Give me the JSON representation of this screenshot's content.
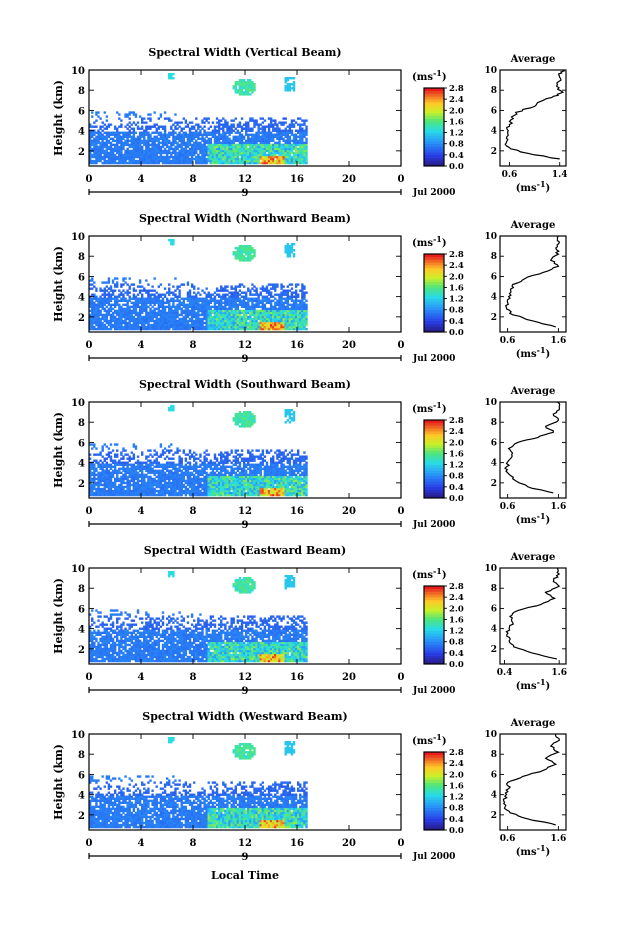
{
  "figure": {
    "shared_xlabel": "Local Time",
    "date_label": "Jul 2000",
    "unit_label": "(ms",
    "unit_exp": "-1",
    "avg_title": "Average"
  },
  "chart_data": [
    {
      "type": "heatmap",
      "title": "Spectral Width (Vertical Beam)",
      "ylabel": "Height (km)",
      "xticks": [
        "0",
        "4",
        "8",
        "12",
        "16",
        "20",
        "0"
      ],
      "xlim": [
        0,
        24
      ],
      "yticks": [
        "2",
        "4",
        "6",
        "8",
        "10"
      ],
      "ylim": [
        0.5,
        10
      ],
      "day_marker": "9",
      "colorbar": {
        "ticks": [
          "0.0",
          "0.4",
          "0.8",
          "1.2",
          "1.6",
          "2.0",
          "2.4",
          "2.8"
        ],
        "range": [
          0.0,
          2.8
        ]
      },
      "profile": {
        "title": "Average",
        "xticks": [
          "0.6",
          "1.4"
        ],
        "xlim": [
          0.45,
          1.5
        ],
        "xlabel": "(ms",
        "yticks": [
          "2",
          "4",
          "6",
          "8",
          "10"
        ],
        "points": [
          [
            1.4,
            1.2
          ],
          [
            1.0,
            1.6
          ],
          [
            0.62,
            2.2
          ],
          [
            0.55,
            2.8
          ],
          [
            0.56,
            3.4
          ],
          [
            0.58,
            4.0
          ],
          [
            0.6,
            4.6
          ],
          [
            0.66,
            5.2
          ],
          [
            0.7,
            5.8
          ],
          [
            1.0,
            6.4
          ],
          [
            1.1,
            6.9
          ],
          [
            1.3,
            7.4
          ],
          [
            1.45,
            7.8
          ],
          [
            1.35,
            8.4
          ],
          [
            1.42,
            9.0
          ],
          [
            1.38,
            9.6
          ],
          [
            1.44,
            10.0
          ]
        ]
      }
    },
    {
      "type": "heatmap",
      "title": "Spectral Width (Northward Beam)",
      "ylabel": "Height (km)",
      "xticks": [
        "0",
        "4",
        "8",
        "12",
        "16",
        "20",
        "0"
      ],
      "xlim": [
        0,
        24
      ],
      "yticks": [
        "2",
        "4",
        "6",
        "8",
        "10"
      ],
      "ylim": [
        0.5,
        10
      ],
      "day_marker": "9",
      "colorbar": {
        "ticks": [
          "0.0",
          "0.4",
          "0.8",
          "1.2",
          "1.6",
          "2.0",
          "2.4",
          "2.8"
        ],
        "range": [
          0.0,
          2.8
        ]
      },
      "profile": {
        "title": "Average",
        "xticks": [
          "0.6",
          "1.6"
        ],
        "xlim": [
          0.45,
          1.75
        ],
        "xlabel": "(ms",
        "yticks": [
          "2",
          "4",
          "6",
          "8",
          "10"
        ],
        "points": [
          [
            1.55,
            1.0
          ],
          [
            1.1,
            1.6
          ],
          [
            0.7,
            2.2
          ],
          [
            0.58,
            2.8
          ],
          [
            0.6,
            3.4
          ],
          [
            0.62,
            4.0
          ],
          [
            0.66,
            4.6
          ],
          [
            0.7,
            5.2
          ],
          [
            0.95,
            5.8
          ],
          [
            1.3,
            6.4
          ],
          [
            1.6,
            7.0
          ],
          [
            1.45,
            7.6
          ],
          [
            1.6,
            8.2
          ],
          [
            1.55,
            8.8
          ],
          [
            1.62,
            9.4
          ],
          [
            1.6,
            10.0
          ]
        ]
      }
    },
    {
      "type": "heatmap",
      "title": "Spectral Width (Southward Beam)",
      "ylabel": "Height (km)",
      "xticks": [
        "0",
        "4",
        "8",
        "12",
        "16",
        "20",
        "0"
      ],
      "xlim": [
        0,
        24
      ],
      "yticks": [
        "2",
        "4",
        "6",
        "8",
        "10"
      ],
      "ylim": [
        0.5,
        10
      ],
      "day_marker": "9",
      "colorbar": {
        "ticks": [
          "0.0",
          "0.4",
          "0.8",
          "1.2",
          "1.6",
          "2.0",
          "2.4",
          "2.8"
        ],
        "range": [
          0.0,
          2.8
        ]
      },
      "profile": {
        "title": "Average",
        "xticks": [
          "0.6",
          "1.6"
        ],
        "xlim": [
          0.45,
          1.75
        ],
        "xlabel": "(ms",
        "yticks": [
          "2",
          "4",
          "6",
          "8",
          "10"
        ],
        "points": [
          [
            1.5,
            1.0
          ],
          [
            1.0,
            1.6
          ],
          [
            0.7,
            2.4
          ],
          [
            0.6,
            3.0
          ],
          [
            0.58,
            3.6
          ],
          [
            0.62,
            4.2
          ],
          [
            0.68,
            4.8
          ],
          [
            0.62,
            5.4
          ],
          [
            0.8,
            6.0
          ],
          [
            1.2,
            6.5
          ],
          [
            1.5,
            7.0
          ],
          [
            1.35,
            7.6
          ],
          [
            1.6,
            8.2
          ],
          [
            1.5,
            8.8
          ],
          [
            1.62,
            9.4
          ],
          [
            1.58,
            10.0
          ]
        ]
      }
    },
    {
      "type": "heatmap",
      "title": "Spectral Width (Eastward Beam)",
      "ylabel": "Height (km)",
      "xticks": [
        "0",
        "4",
        "8",
        "12",
        "16",
        "20",
        "0"
      ],
      "xlim": [
        0,
        24
      ],
      "yticks": [
        "2",
        "4",
        "6",
        "8",
        "10"
      ],
      "ylim": [
        0.5,
        10
      ],
      "day_marker": "9",
      "colorbar": {
        "ticks": [
          "0.0",
          "0.4",
          "0.8",
          "1.2",
          "1.6",
          "2.0",
          "2.4",
          "2.8"
        ],
        "range": [
          0.0,
          2.8
        ]
      },
      "profile": {
        "title": "Average",
        "xticks": [
          "0.4",
          "1.6"
        ],
        "xlim": [
          0.3,
          1.75
        ],
        "xlabel": "(ms",
        "yticks": [
          "2",
          "4",
          "6",
          "8",
          "10"
        ],
        "points": [
          [
            1.55,
            1.0
          ],
          [
            1.0,
            1.6
          ],
          [
            0.6,
            2.2
          ],
          [
            0.5,
            2.8
          ],
          [
            0.45,
            3.4
          ],
          [
            0.5,
            4.0
          ],
          [
            0.58,
            4.6
          ],
          [
            0.52,
            5.2
          ],
          [
            0.7,
            5.8
          ],
          [
            1.2,
            6.4
          ],
          [
            1.5,
            7.0
          ],
          [
            1.3,
            7.6
          ],
          [
            1.6,
            8.2
          ],
          [
            1.48,
            8.8
          ],
          [
            1.6,
            9.4
          ],
          [
            1.56,
            10.0
          ]
        ]
      }
    },
    {
      "type": "heatmap",
      "title": "Spectral Width (Westward Beam)",
      "ylabel": "Height (km)",
      "xticks": [
        "0",
        "4",
        "8",
        "12",
        "16",
        "20",
        "0"
      ],
      "xlim": [
        0,
        24
      ],
      "yticks": [
        "2",
        "4",
        "6",
        "8",
        "10"
      ],
      "ylim": [
        0.5,
        10
      ],
      "day_marker": "9",
      "colorbar": {
        "ticks": [
          "0.0",
          "0.4",
          "0.8",
          "1.2",
          "1.6",
          "2.0",
          "2.4",
          "2.8"
        ],
        "range": [
          0.0,
          2.8
        ]
      },
      "profile": {
        "title": "Average",
        "xticks": [
          "0.6",
          "1.6"
        ],
        "xlim": [
          0.45,
          1.75
        ],
        "xlabel": "(ms",
        "yticks": [
          "2",
          "4",
          "6",
          "8",
          "10"
        ],
        "points": [
          [
            1.55,
            1.0
          ],
          [
            1.0,
            1.6
          ],
          [
            0.65,
            2.2
          ],
          [
            0.55,
            2.8
          ],
          [
            0.52,
            3.4
          ],
          [
            0.58,
            4.0
          ],
          [
            0.62,
            4.6
          ],
          [
            0.6,
            5.2
          ],
          [
            0.9,
            5.8
          ],
          [
            1.3,
            6.4
          ],
          [
            1.55,
            7.0
          ],
          [
            1.35,
            7.6
          ],
          [
            1.6,
            8.2
          ],
          [
            1.45,
            8.8
          ],
          [
            1.62,
            9.4
          ],
          [
            1.55,
            10.0
          ]
        ]
      }
    }
  ]
}
